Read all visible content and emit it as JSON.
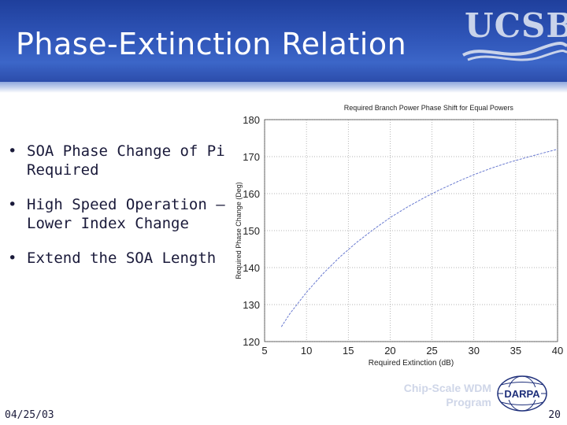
{
  "slide": {
    "title": "Phase-Extinction Relation",
    "logo_text": "UCSB",
    "bullets": [
      {
        "line1": "SOA Phase Change of Pi",
        "line2": "Required"
      },
      {
        "line1": "High Speed Operation –",
        "line2": "Lower Index Change"
      },
      {
        "line1": "Extend the SOA Length",
        "line2": ""
      }
    ],
    "bullet_symbol": "•",
    "footer": {
      "date": "04/25/03",
      "page": "20",
      "program_line1": "Chip-Scale WDM",
      "program_line2": "Program",
      "darpa_text": "DARPA"
    }
  },
  "colors": {
    "header_blue": "#2f55b8",
    "curve": "#6a7bd0",
    "grid": "#9a9a9a"
  },
  "chart_data": {
    "type": "line",
    "title": "Required Branch Power Phase Shift for Equal Powers",
    "xlabel": "Required Extinction (dB)",
    "ylabel": "Required Phase Change (Deg)",
    "xlim": [
      5,
      40
    ],
    "ylim": [
      120,
      180
    ],
    "xticks": [
      5,
      10,
      15,
      20,
      25,
      30,
      35,
      40
    ],
    "yticks": [
      120,
      130,
      140,
      150,
      160,
      170,
      180
    ],
    "grid": true,
    "series": [
      {
        "name": "Required Phase Change",
        "x": [
          7,
          8,
          10,
          12,
          14,
          16,
          18,
          20,
          22,
          24,
          26,
          28,
          30,
          32,
          34,
          36,
          38,
          40
        ],
        "y": [
          124,
          127.5,
          133.3,
          138.4,
          142.9,
          146.8,
          150.3,
          153.5,
          156.3,
          158.8,
          161.1,
          163.2,
          165.1,
          166.8,
          168.3,
          169.6,
          170.8,
          172
        ]
      }
    ]
  }
}
